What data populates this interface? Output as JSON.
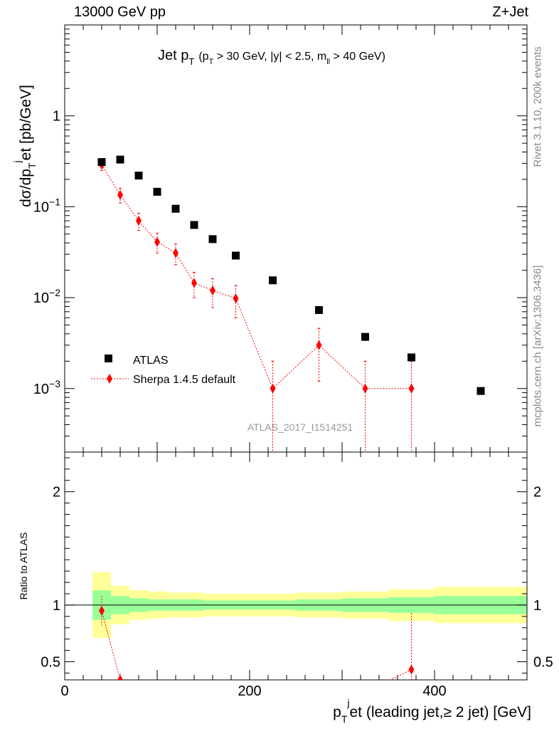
{
  "header": {
    "left": "13000 GeV pp",
    "right": "Z+Jet"
  },
  "side": {
    "rivet": "Rivet 3.1.10,  200k events",
    "mcplots": "mcplots.cern.ch [arXiv:1306.3436]"
  },
  "plot_title": {
    "main": "Jet p",
    "main_sub": "T",
    "paren": "(p",
    "paren_sub": "T",
    "paren_rest": " > 30 GeV, |y| < 2.5, m",
    "mll_sub": "ll",
    "paren_end": " > 40 GeV)"
  },
  "analysis_id": "ATLAS_2017_I1514251",
  "colors": {
    "atlas": "#000000",
    "sherpa": "#ff0000",
    "band_outer": "#ffff99",
    "band_inner": "#99ff99",
    "watermark": "#999999"
  },
  "chart_data": [
    {
      "type": "scatter",
      "panel": "main",
      "yscale": "log",
      "ylabel": "dσ/dp_T^jet [pb/GeV]",
      "xlim": [
        0,
        500
      ],
      "ylim": [
        0.0002,
        10
      ],
      "y_ticks": [
        {
          "value": 1,
          "label": "1"
        },
        {
          "value": 0.1,
          "label": "10",
          "exp": "−1"
        },
        {
          "value": 0.01,
          "label": "10",
          "exp": "−2"
        },
        {
          "value": 0.001,
          "label": "10",
          "exp": "−3"
        }
      ],
      "legend": {
        "position": "lower-left",
        "entries": [
          "ATLAS",
          "Sherpa 1.4.5 default"
        ]
      },
      "series": [
        {
          "name": "ATLAS",
          "marker": "square",
          "x": [
            40,
            60,
            80,
            100,
            120,
            140,
            160,
            185,
            225,
            275,
            325,
            375,
            450
          ],
          "y": [
            0.31,
            0.33,
            0.22,
            0.146,
            0.095,
            0.063,
            0.044,
            0.029,
            0.0155,
            0.0073,
            0.0037,
            0.0022,
            0.00094
          ]
        },
        {
          "name": "Sherpa 1.4.5 default",
          "marker": "diamond",
          "x": [
            40,
            60,
            80,
            100,
            120,
            140,
            160,
            185,
            225,
            275,
            325,
            375
          ],
          "y": [
            0.29,
            0.135,
            0.07,
            0.041,
            0.031,
            0.0145,
            0.012,
            0.0098,
            0.001,
            0.003,
            0.001,
            0.001
          ],
          "y_err_low": [
            0.04,
            0.025,
            0.015,
            0.01,
            0.008,
            0.0045,
            0.0042,
            0.0038,
            0.00099,
            0.0018,
            0.00099,
            0.00099
          ],
          "y_err_high": [
            0.04,
            0.025,
            0.015,
            0.01,
            0.008,
            0.0045,
            0.0042,
            0.0038,
            0.001,
            0.0016,
            0.001,
            0.001
          ]
        }
      ]
    },
    {
      "type": "line",
      "panel": "ratio",
      "xlabel": "p_T^jet (leading jet,≥ 2 jet) [GeV]",
      "ylabel": "Ratio to ATLAS",
      "xlim": [
        0,
        500
      ],
      "ylim": [
        0.34,
        2.35
      ],
      "x_ticks": [
        0,
        200,
        400
      ],
      "y_ticks": [
        0.5,
        1,
        2
      ],
      "band_edges": [
        30,
        50,
        70,
        90,
        110,
        130,
        150,
        170,
        200,
        250,
        300,
        350,
        400,
        500
      ],
      "band_outer_low": [
        0.71,
        0.83,
        0.87,
        0.88,
        0.89,
        0.89,
        0.9,
        0.9,
        0.9,
        0.89,
        0.88,
        0.86,
        0.84
      ],
      "band_outer_high": [
        1.29,
        1.17,
        1.13,
        1.12,
        1.11,
        1.11,
        1.1,
        1.1,
        1.1,
        1.11,
        1.12,
        1.14,
        1.16
      ],
      "band_inner_low": [
        0.87,
        0.92,
        0.94,
        0.95,
        0.95,
        0.95,
        0.96,
        0.96,
        0.96,
        0.95,
        0.94,
        0.93,
        0.92
      ],
      "band_inner_high": [
        1.13,
        1.08,
        1.06,
        1.05,
        1.05,
        1.05,
        1.04,
        1.04,
        1.04,
        1.05,
        1.06,
        1.07,
        1.08
      ],
      "series": [
        {
          "name": "Sherpa 1.4.5 default",
          "x": [
            40,
            60,
            375
          ],
          "y": [
            0.95,
            0.34,
            0.43
          ],
          "y_err_low": [
            0.13,
            0.06,
            0.43
          ],
          "y_err_high": [
            0.13,
            0.06,
            0.5
          ]
        }
      ]
    }
  ]
}
